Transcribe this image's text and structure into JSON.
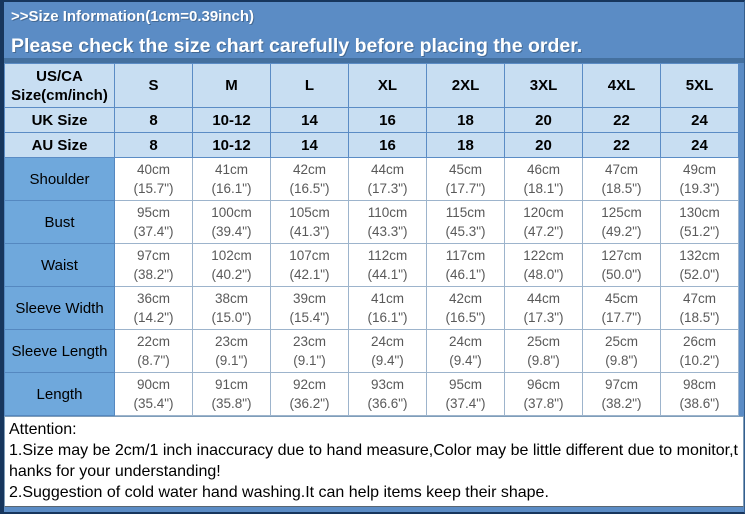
{
  "banner": {
    "title": ">>Size Information(1cm=0.39inch)",
    "subtitle": "Please check the size chart carefully before placing the order."
  },
  "size_chart": {
    "corner": {
      "line1": "US/CA",
      "line2": "Size(cm/inch)"
    },
    "columns": [
      "S",
      "M",
      "L",
      "XL",
      "2XL",
      "3XL",
      "4XL",
      "5XL"
    ],
    "uk_row": {
      "label": "UK Size",
      "values": [
        "8",
        "10-12",
        "14",
        "16",
        "18",
        "20",
        "22",
        "24"
      ]
    },
    "au_row": {
      "label": "AU Size",
      "values": [
        "8",
        "10-12",
        "14",
        "16",
        "18",
        "20",
        "22",
        "24"
      ]
    },
    "measurement_rows": [
      {
        "label": "Shoulder",
        "values": [
          {
            "cm": "40cm",
            "in": "(15.7\")"
          },
          {
            "cm": "41cm",
            "in": "(16.1\")"
          },
          {
            "cm": "42cm",
            "in": "(16.5\")"
          },
          {
            "cm": "44cm",
            "in": "(17.3\")"
          },
          {
            "cm": "45cm",
            "in": "(17.7\")"
          },
          {
            "cm": "46cm",
            "in": "(18.1\")"
          },
          {
            "cm": "47cm",
            "in": "(18.5\")"
          },
          {
            "cm": "49cm",
            "in": "(19.3\")"
          }
        ]
      },
      {
        "label": "Bust",
        "values": [
          {
            "cm": "95cm",
            "in": "(37.4\")"
          },
          {
            "cm": "100cm",
            "in": "(39.4\")"
          },
          {
            "cm": "105cm",
            "in": "(41.3\")"
          },
          {
            "cm": "110cm",
            "in": "(43.3\")"
          },
          {
            "cm": "115cm",
            "in": "(45.3\")"
          },
          {
            "cm": "120cm",
            "in": "(47.2\")"
          },
          {
            "cm": "125cm",
            "in": "(49.2\")"
          },
          {
            "cm": "130cm",
            "in": "(51.2\")"
          }
        ]
      },
      {
        "label": "Waist",
        "values": [
          {
            "cm": "97cm",
            "in": "(38.2\")"
          },
          {
            "cm": "102cm",
            "in": "(40.2\")"
          },
          {
            "cm": "107cm",
            "in": "(42.1\")"
          },
          {
            "cm": "112cm",
            "in": "(44.1\")"
          },
          {
            "cm": "117cm",
            "in": "(46.1\")"
          },
          {
            "cm": "122cm",
            "in": "(48.0\")"
          },
          {
            "cm": "127cm",
            "in": "(50.0\")"
          },
          {
            "cm": "132cm",
            "in": "(52.0\")"
          }
        ]
      },
      {
        "label": "Sleeve Width",
        "values": [
          {
            "cm": "36cm",
            "in": "(14.2\")"
          },
          {
            "cm": "38cm",
            "in": "(15.0\")"
          },
          {
            "cm": "39cm",
            "in": "(15.4\")"
          },
          {
            "cm": "41cm",
            "in": "(16.1\")"
          },
          {
            "cm": "42cm",
            "in": "(16.5\")"
          },
          {
            "cm": "44cm",
            "in": "(17.3\")"
          },
          {
            "cm": "45cm",
            "in": "(17.7\")"
          },
          {
            "cm": "47cm",
            "in": "(18.5\")"
          }
        ]
      },
      {
        "label": "Sleeve Length",
        "values": [
          {
            "cm": "22cm",
            "in": "(8.7\")"
          },
          {
            "cm": "23cm",
            "in": "(9.1\")"
          },
          {
            "cm": "23cm",
            "in": "(9.1\")"
          },
          {
            "cm": "24cm",
            "in": "(9.4\")"
          },
          {
            "cm": "24cm",
            "in": "(9.4\")"
          },
          {
            "cm": "25cm",
            "in": "(9.8\")"
          },
          {
            "cm": "25cm",
            "in": "(9.8\")"
          },
          {
            "cm": "26cm",
            "in": "(10.2\")"
          }
        ]
      },
      {
        "label": "Length",
        "values": [
          {
            "cm": "90cm",
            "in": "(35.4\")"
          },
          {
            "cm": "91cm",
            "in": "(35.8\")"
          },
          {
            "cm": "92cm",
            "in": "(36.2\")"
          },
          {
            "cm": "93cm",
            "in": "(36.6\")"
          },
          {
            "cm": "95cm",
            "in": "(37.4\")"
          },
          {
            "cm": "96cm",
            "in": "(37.8\")"
          },
          {
            "cm": "97cm",
            "in": "(38.2\")"
          },
          {
            "cm": "98cm",
            "in": "(38.6\")"
          }
        ]
      }
    ]
  },
  "attention": {
    "heading": "Attention:",
    "notes": [
      "1.Size may be 2cm/1 inch inaccuracy due to hand measure,Color may be little different due to monitor,thanks for your understanding!",
      "2.Suggestion of cold water hand washing.It can help items keep their shape."
    ]
  },
  "colors": {
    "background_blue": "#5b8cc5",
    "dark_navy_border": "#17365d",
    "header_light_blue": "#c8def2",
    "row_label_blue": "#6fa8dc",
    "data_text_gray": "#595959"
  }
}
